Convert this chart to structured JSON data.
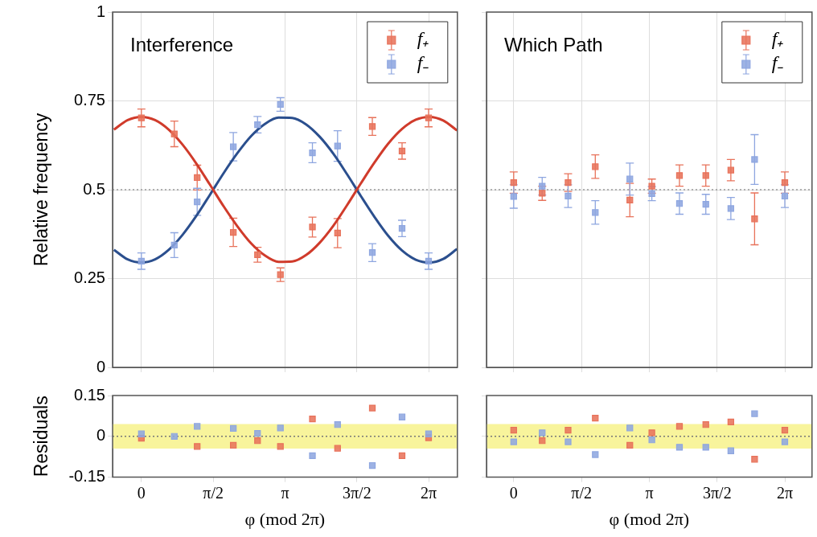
{
  "chart_data": [
    {
      "type": "scatter",
      "title": "Interference",
      "ylabel": "Relative frequency",
      "xlim": [
        -0.63,
        6.91
      ],
      "ylim": [
        0,
        1
      ],
      "xticks": [
        {
          "value": 0,
          "label": null
        },
        {
          "value": 1.5708,
          "label": null
        },
        {
          "value": 3.1416,
          "label": null
        },
        {
          "value": 4.7124,
          "label": null
        },
        {
          "value": 6.2832,
          "label": null
        }
      ],
      "yticks": [
        0,
        0.25,
        0.5,
        0.75,
        1
      ],
      "tick_labels": "y",
      "grid": true,
      "legend": "top right",
      "marker": "square",
      "ref_lines": [
        {
          "axis": "y",
          "value": 0.5,
          "color": "#999999",
          "line_style": "dotted"
        }
      ],
      "series": [
        {
          "type": "line",
          "color": "#d03b2b",
          "marker": "none",
          "x": [
            -0.6,
            -0.3,
            0,
            0.3,
            0.6,
            0.9,
            1.2,
            1.5,
            1.8,
            2.1,
            2.4,
            2.7,
            3.0,
            3.3,
            3.6,
            3.9,
            4.2,
            4.5,
            4.8,
            5.1,
            5.4,
            5.7,
            6.0,
            6.3,
            6.6,
            6.9
          ],
          "values": [
            0.669,
            0.696,
            0.705,
            0.696,
            0.669,
            0.627,
            0.574,
            0.514,
            0.453,
            0.397,
            0.349,
            0.315,
            0.297,
            0.298,
            0.316,
            0.351,
            0.399,
            0.457,
            0.518,
            0.577,
            0.63,
            0.671,
            0.697,
            0.705,
            0.695,
            0.667
          ]
        },
        {
          "type": "line",
          "color": "#2b4f8e",
          "marker": "none",
          "x": [
            -0.6,
            -0.3,
            0,
            0.3,
            0.6,
            0.9,
            1.2,
            1.5,
            1.8,
            2.1,
            2.4,
            2.7,
            3.0,
            3.3,
            3.6,
            3.9,
            4.2,
            4.5,
            4.8,
            5.1,
            5.4,
            5.7,
            6.0,
            6.3,
            6.6,
            6.9
          ],
          "values": [
            0.331,
            0.304,
            0.295,
            0.304,
            0.331,
            0.373,
            0.426,
            0.486,
            0.547,
            0.603,
            0.651,
            0.685,
            0.703,
            0.702,
            0.684,
            0.649,
            0.601,
            0.543,
            0.482,
            0.423,
            0.37,
            0.329,
            0.303,
            0.295,
            0.305,
            0.333
          ]
        },
        {
          "name": "f₊",
          "color": "#e8725a",
          "x": [
            0,
            0.72,
            1.22,
            2.01,
            2.54,
            3.04,
            3.74,
            4.29,
            5.05,
            5.7,
            6.28
          ],
          "values": [
            0.702,
            0.657,
            0.534,
            0.38,
            0.317,
            0.261,
            0.395,
            0.378,
            0.678,
            0.609,
            0.702
          ],
          "errors": [
            0.025,
            0.036,
            0.035,
            0.04,
            0.021,
            0.019,
            0.028,
            0.041,
            0.025,
            0.023,
            0.025
          ]
        },
        {
          "name": "f₋",
          "color": "#8ea6e0",
          "x": [
            0,
            0.72,
            1.22,
            2.01,
            2.54,
            3.04,
            3.74,
            4.29,
            5.05,
            5.7,
            6.28
          ],
          "values": [
            0.299,
            0.344,
            0.466,
            0.621,
            0.683,
            0.74,
            0.604,
            0.623,
            0.323,
            0.391,
            0.299
          ],
          "errors": [
            0.023,
            0.035,
            0.038,
            0.04,
            0.023,
            0.019,
            0.028,
            0.043,
            0.025,
            0.023,
            0.023
          ]
        }
      ]
    },
    {
      "type": "scatter",
      "title": "Which Path",
      "xlim": [
        -0.63,
        6.91
      ],
      "ylim": [
        0,
        1
      ],
      "xticks": [
        {
          "value": 0,
          "label": null
        },
        {
          "value": 1.5708,
          "label": null
        },
        {
          "value": 3.1416,
          "label": null
        },
        {
          "value": 4.7124,
          "label": null
        },
        {
          "value": 6.2832,
          "label": null
        }
      ],
      "yticks": [
        0,
        0.25,
        0.5,
        0.75,
        1
      ],
      "tick_labels": false,
      "grid": true,
      "legend": "top right",
      "marker": "square",
      "ref_lines": [
        {
          "axis": "y",
          "value": 0.5,
          "color": "#999999",
          "line_style": "dotted"
        }
      ],
      "series": [
        {
          "name": "f₊",
          "color": "#e8725a",
          "x": [
            0,
            0.66,
            1.26,
            1.89,
            2.69,
            3.2,
            3.84,
            4.45,
            5.03,
            5.58,
            6.28
          ],
          "values": [
            0.52,
            0.49,
            0.52,
            0.565,
            0.471,
            0.51,
            0.54,
            0.54,
            0.555,
            0.418,
            0.52
          ],
          "errors": [
            0.03,
            0.02,
            0.025,
            0.033,
            0.047,
            0.02,
            0.03,
            0.03,
            0.03,
            0.073,
            0.03
          ]
        },
        {
          "name": "f₋",
          "color": "#8ea6e0",
          "x": [
            0,
            0.66,
            1.26,
            1.89,
            2.69,
            3.2,
            3.84,
            4.45,
            5.03,
            5.58,
            6.28
          ],
          "values": [
            0.481,
            0.51,
            0.482,
            0.436,
            0.53,
            0.489,
            0.461,
            0.459,
            0.447,
            0.585,
            0.482
          ],
          "errors": [
            0.033,
            0.025,
            0.032,
            0.033,
            0.045,
            0.02,
            0.03,
            0.028,
            0.031,
            0.07,
            0.032
          ]
        }
      ]
    },
    {
      "type": "scatter",
      "xlabel": "φ (mod 2π)",
      "ylabel": "Residuals",
      "xlim": [
        -0.63,
        6.91
      ],
      "ylim": [
        -0.15,
        0.15
      ],
      "xticks": [
        {
          "value": 0,
          "label": "0"
        },
        {
          "value": 1.5708,
          "label": "π/2"
        },
        {
          "value": 3.1416,
          "label": "π"
        },
        {
          "value": 4.7124,
          "label": "3π/2"
        },
        {
          "value": 6.2832,
          "label": "2π"
        }
      ],
      "yticks": [
        -0.15,
        0,
        0.15
      ],
      "marker": "square",
      "ref_lines": [
        {
          "axis": "y",
          "value": 0,
          "color": "#777777",
          "line_style": "dotted"
        }
      ],
      "bands": [
        {
          "axis": "y",
          "from": -0.045,
          "to": 0.045,
          "color": "#f8f49c"
        }
      ],
      "series": [
        {
          "color": "#e8725a",
          "x": [
            0,
            0.72,
            1.22,
            2.01,
            2.54,
            3.04,
            3.74,
            4.29,
            5.05,
            5.7,
            6.28
          ],
          "values": [
            -0.007,
            null,
            -0.037,
            -0.033,
            -0.016,
            -0.037,
            0.064,
            -0.044,
            0.104,
            -0.071,
            -0.005
          ]
        },
        {
          "color": "#8ea6e0",
          "x": [
            0,
            0.72,
            1.22,
            2.01,
            2.54,
            3.04,
            3.74,
            4.29,
            5.05,
            5.7,
            6.28
          ],
          "values": [
            0.009,
            0,
            0.037,
            0.029,
            0.011,
            0.031,
            -0.071,
            0.043,
            -0.107,
            0.071,
            0.009
          ]
        }
      ]
    },
    {
      "type": "scatter",
      "xlabel": "φ (mod 2π)",
      "xlim": [
        -0.63,
        6.91
      ],
      "ylim": [
        -0.15,
        0.15
      ],
      "xticks": [
        {
          "value": 0,
          "label": "0"
        },
        {
          "value": 1.5708,
          "label": "π/2"
        },
        {
          "value": 3.1416,
          "label": "π"
        },
        {
          "value": 4.7124,
          "label": "3π/2"
        },
        {
          "value": 6.2832,
          "label": "2π"
        }
      ],
      "yticks": [
        -0.15,
        0,
        0.15
      ],
      "tick_labels": "x",
      "marker": "square",
      "ref_lines": [
        {
          "axis": "y",
          "value": 0,
          "color": "#777777",
          "line_style": "dotted"
        }
      ],
      "bands": [
        {
          "axis": "y",
          "from": -0.045,
          "to": 0.045,
          "color": "#f8f49c"
        }
      ],
      "series": [
        {
          "color": "#e8725a",
          "x": [
            0,
            0.66,
            1.26,
            1.89,
            2.69,
            3.2,
            3.84,
            4.45,
            5.03,
            5.58,
            6.28
          ],
          "values": [
            0.023,
            -0.016,
            0.023,
            0.067,
            -0.033,
            0.013,
            0.037,
            0.043,
            0.053,
            -0.084,
            0.023
          ]
        },
        {
          "color": "#8ea6e0",
          "x": [
            0,
            0.66,
            1.26,
            1.89,
            2.69,
            3.2,
            3.84,
            4.45,
            5.03,
            5.58,
            6.28
          ],
          "values": [
            -0.02,
            0.013,
            -0.02,
            -0.067,
            0.031,
            -0.013,
            -0.04,
            -0.04,
            -0.053,
            0.083,
            -0.02
          ]
        }
      ]
    }
  ]
}
